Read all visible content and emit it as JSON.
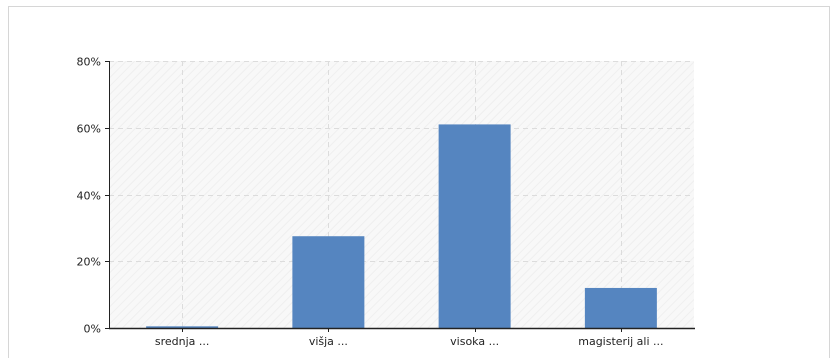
{
  "chart_data": {
    "type": "bar",
    "title": "",
    "xlabel": "",
    "ylabel": "",
    "categories": [
      "srednja ...",
      "višja ...",
      "visoka ...",
      "magisterij ali ..."
    ],
    "values": [
      0.5,
      27.5,
      61,
      12
    ],
    "ylim": [
      0,
      80
    ],
    "yticks": [
      0,
      20,
      40,
      60,
      80
    ],
    "ytick_labels": [
      "0%",
      "20%",
      "40%",
      "60%",
      "80%"
    ],
    "grid": true,
    "legend": "none",
    "colors": {
      "bar": "#5585c0",
      "plot_background": "#f7f7f7",
      "grid": "#dcdcdc",
      "axis": "#222222"
    }
  }
}
